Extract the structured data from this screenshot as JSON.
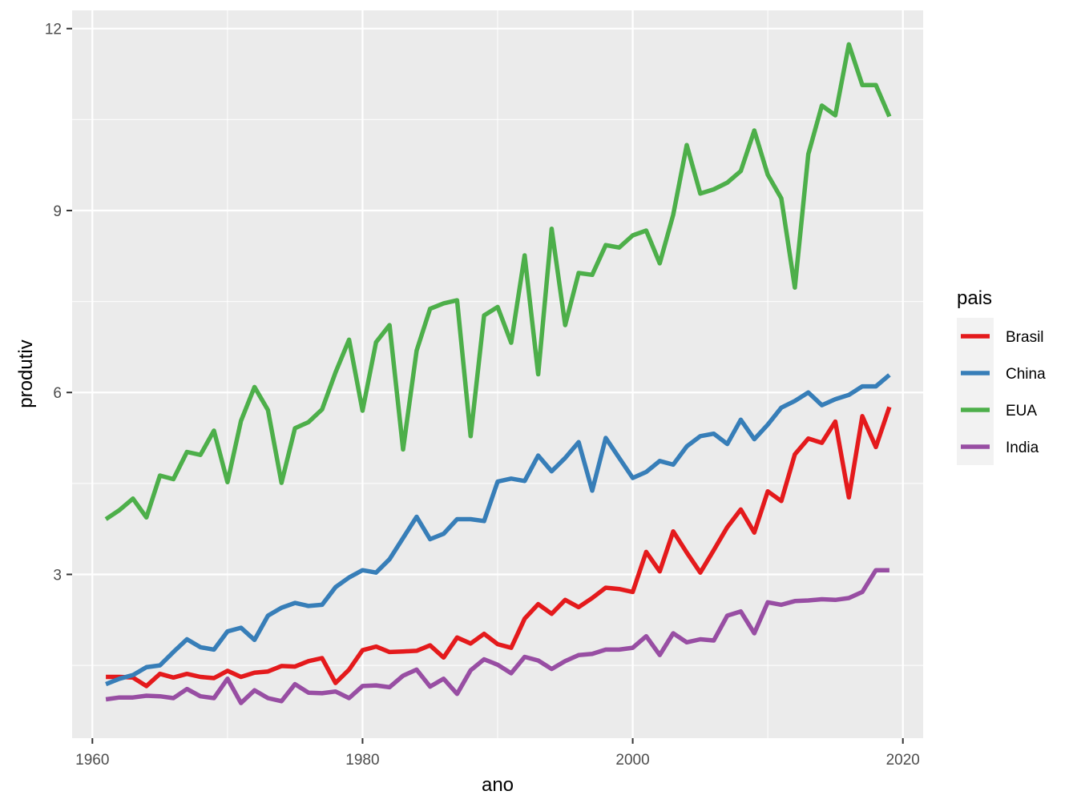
{
  "chart_data": {
    "type": "line",
    "xlabel": "ano",
    "ylabel": "produtiv",
    "xlim": [
      1958.5,
      2021.5
    ],
    "ylim": [
      0.3,
      12.3
    ],
    "x_ticks": [
      1960,
      1980,
      2000,
      2020
    ],
    "y_ticks": [
      3,
      6,
      9,
      12
    ],
    "x_tick_labels": [
      "1960",
      "1980",
      "2000",
      "2020"
    ],
    "y_tick_labels": [
      "3",
      "6",
      "9",
      "12"
    ],
    "grid": true,
    "background": "#ebebeb",
    "legend": {
      "title": "pais",
      "position": "right"
    },
    "x": [
      1961,
      1962,
      1963,
      1964,
      1965,
      1966,
      1967,
      1968,
      1969,
      1970,
      1971,
      1972,
      1973,
      1974,
      1975,
      1976,
      1977,
      1978,
      1979,
      1980,
      1981,
      1982,
      1983,
      1984,
      1985,
      1986,
      1987,
      1988,
      1989,
      1990,
      1991,
      1992,
      1993,
      1994,
      1995,
      1996,
      1997,
      1998,
      1999,
      2000,
      2001,
      2002,
      2003,
      2004,
      2005,
      2006,
      2007,
      2008,
      2009,
      2010,
      2011,
      2012,
      2013,
      2014,
      2015,
      2016,
      2017,
      2018,
      2019
    ],
    "series": [
      {
        "name": "Brasil",
        "color": "#e41a1c",
        "values": [
          1.31,
          1.31,
          1.3,
          1.16,
          1.36,
          1.3,
          1.36,
          1.31,
          1.29,
          1.41,
          1.31,
          1.38,
          1.4,
          1.49,
          1.48,
          1.57,
          1.62,
          1.21,
          1.43,
          1.75,
          1.81,
          1.72,
          1.73,
          1.74,
          1.83,
          1.63,
          1.96,
          1.86,
          2.02,
          1.85,
          1.79,
          2.27,
          2.51,
          2.35,
          2.58,
          2.46,
          2.61,
          2.78,
          2.76,
          2.71,
          3.37,
          3.05,
          3.71,
          3.36,
          3.03,
          3.4,
          3.78,
          4.07,
          3.69,
          4.37,
          4.21,
          4.98,
          5.24,
          5.17,
          5.52,
          4.27,
          5.61,
          5.1,
          5.76
        ]
      },
      {
        "name": "China",
        "color": "#377eb8",
        "values": [
          1.19,
          1.28,
          1.34,
          1.47,
          1.5,
          1.72,
          1.93,
          1.8,
          1.76,
          2.06,
          2.12,
          1.92,
          2.32,
          2.45,
          2.53,
          2.48,
          2.5,
          2.79,
          2.95,
          3.07,
          3.03,
          3.25,
          3.6,
          3.95,
          3.58,
          3.67,
          3.91,
          3.91,
          3.88,
          4.53,
          4.58,
          4.54,
          4.96,
          4.7,
          4.92,
          5.18,
          4.38,
          5.25,
          4.92,
          4.59,
          4.69,
          4.87,
          4.81,
          5.11,
          5.28,
          5.32,
          5.15,
          5.55,
          5.23,
          5.47,
          5.75,
          5.86,
          6.0,
          5.79,
          5.89,
          5.96,
          6.1,
          6.1,
          6.29
        ]
      },
      {
        "name": "EUA",
        "color": "#4daf4a",
        "values": [
          3.91,
          4.06,
          4.25,
          3.94,
          4.63,
          4.57,
          5.02,
          4.97,
          5.37,
          4.52,
          5.53,
          6.09,
          5.71,
          4.51,
          5.41,
          5.51,
          5.72,
          6.33,
          6.87,
          5.7,
          6.83,
          7.11,
          5.06,
          6.69,
          7.38,
          7.47,
          7.52,
          5.28,
          7.27,
          7.41,
          6.82,
          8.26,
          6.3,
          8.7,
          7.11,
          7.97,
          7.94,
          8.43,
          8.39,
          8.59,
          8.67,
          8.13,
          8.93,
          10.08,
          9.28,
          9.35,
          9.46,
          9.65,
          10.32,
          9.59,
          9.2,
          7.73,
          9.93,
          10.73,
          10.57,
          11.74,
          11.07,
          11.07,
          10.55
        ]
      },
      {
        "name": "India",
        "color": "#984ea3",
        "values": [
          0.94,
          0.97,
          0.97,
          1.0,
          0.99,
          0.96,
          1.11,
          0.99,
          0.96,
          1.28,
          0.88,
          1.09,
          0.96,
          0.91,
          1.19,
          1.05,
          1.04,
          1.07,
          0.96,
          1.16,
          1.17,
          1.14,
          1.33,
          1.43,
          1.15,
          1.28,
          1.03,
          1.42,
          1.6,
          1.51,
          1.37,
          1.64,
          1.58,
          1.44,
          1.57,
          1.67,
          1.69,
          1.76,
          1.76,
          1.79,
          1.98,
          1.67,
          2.03,
          1.88,
          1.93,
          1.91,
          2.32,
          2.39,
          2.03,
          2.54,
          2.5,
          2.56,
          2.57,
          2.59,
          2.58,
          2.61,
          2.71,
          3.07,
          3.07
        ]
      }
    ]
  }
}
